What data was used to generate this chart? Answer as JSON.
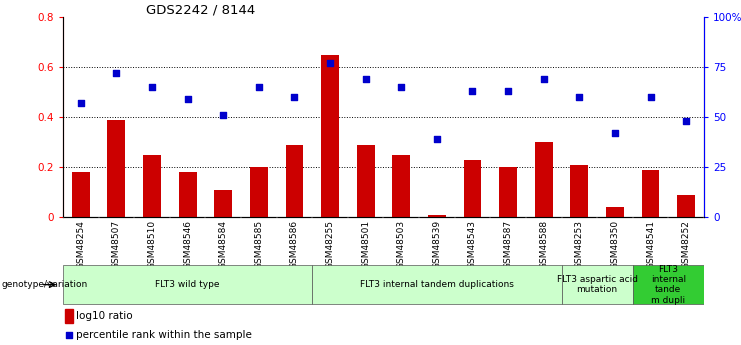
{
  "title": "GDS2242 / 8144",
  "samples": [
    "GSM48254",
    "GSM48507",
    "GSM48510",
    "GSM48546",
    "GSM48584",
    "GSM48585",
    "GSM48586",
    "GSM48255",
    "GSM48501",
    "GSM48503",
    "GSM48539",
    "GSM48543",
    "GSM48587",
    "GSM48588",
    "GSM48253",
    "GSM48350",
    "GSM48541",
    "GSM48252"
  ],
  "log10_ratio": [
    0.18,
    0.39,
    0.25,
    0.18,
    0.11,
    0.2,
    0.29,
    0.65,
    0.29,
    0.25,
    0.01,
    0.23,
    0.2,
    0.3,
    0.21,
    0.04,
    0.19,
    0.09
  ],
  "percentile_rank": [
    0.57,
    0.72,
    0.65,
    0.59,
    0.51,
    0.65,
    0.6,
    0.77,
    0.69,
    0.65,
    0.39,
    0.63,
    0.63,
    0.69,
    0.6,
    0.42,
    0.6,
    0.48
  ],
  "bar_color": "#cc0000",
  "scatter_color": "#0000cc",
  "ylim_left": [
    0,
    0.8
  ],
  "ylim_right": [
    0,
    1.0
  ],
  "yticks_left": [
    0,
    0.2,
    0.4,
    0.6,
    0.8
  ],
  "ytick_labels_left": [
    "0",
    "0.2",
    "0.4",
    "0.6",
    "0.8"
  ],
  "yticks_right": [
    0,
    0.25,
    0.5,
    0.75,
    1.0
  ],
  "ytick_labels_right": [
    "0",
    "25",
    "50",
    "75",
    "100%"
  ],
  "groups": [
    {
      "label": "FLT3 wild type",
      "start": 0,
      "end": 7,
      "color": "#ccffcc"
    },
    {
      "label": "FLT3 internal tandem duplications",
      "start": 7,
      "end": 14,
      "color": "#ccffcc"
    },
    {
      "label": "FLT3 aspartic acid\nmutation",
      "start": 14,
      "end": 16,
      "color": "#ccffcc"
    },
    {
      "label": "FLT3\ninternal\ntande\nm dupli",
      "start": 16,
      "end": 18,
      "color": "#33cc33"
    }
  ],
  "genotype_label": "genotype/variation",
  "legend_bar_label": "log10 ratio",
  "legend_scatter_label": "percentile rank within the sample",
  "background_color": "#ffffff",
  "tick_area_color": "#c8c8c8"
}
